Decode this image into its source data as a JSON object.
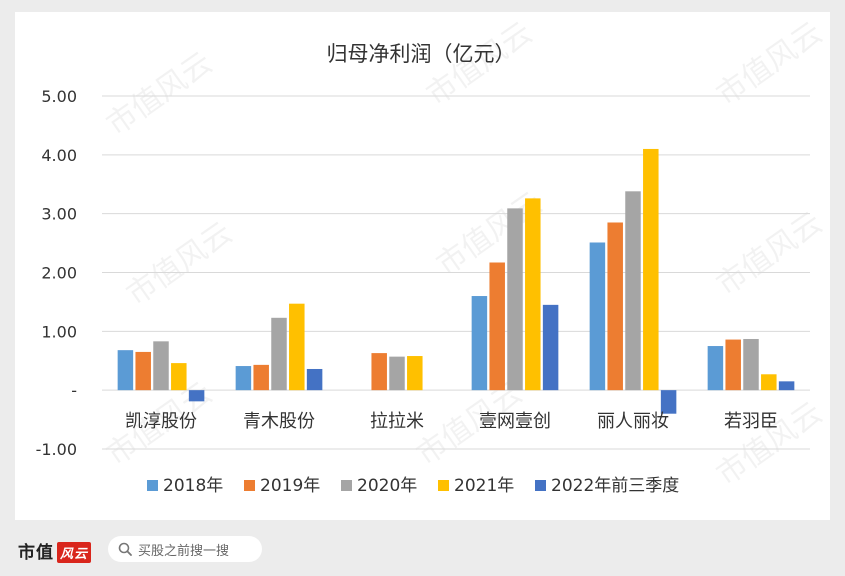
{
  "chart_data": {
    "type": "bar",
    "title": "归母净利润（亿元）",
    "categories": [
      "凯淳股份",
      "青木股份",
      "拉拉米",
      "壹网壹创",
      "丽人丽妆",
      "若羽臣"
    ],
    "series": [
      {
        "name": "2018年",
        "color": "#5b9bd5",
        "values": [
          0.68,
          0.41,
          null,
          1.6,
          2.51,
          0.75
        ]
      },
      {
        "name": "2019年",
        "color": "#ed7d31",
        "values": [
          0.65,
          0.43,
          0.63,
          2.17,
          2.85,
          0.86
        ]
      },
      {
        "name": "2020年",
        "color": "#a5a5a5",
        "values": [
          0.83,
          1.23,
          0.57,
          3.09,
          3.38,
          0.87
        ]
      },
      {
        "name": "2021年",
        "color": "#ffc000",
        "values": [
          0.46,
          1.47,
          0.58,
          3.26,
          4.1,
          0.27
        ]
      },
      {
        "name": "2022年前三季度",
        "color": "#4472c4",
        "values": [
          -0.19,
          0.36,
          null,
          1.45,
          -0.4,
          0.15
        ]
      }
    ],
    "ylim": [
      -1,
      5
    ],
    "yticks": [
      -1,
      0,
      1,
      2,
      3,
      4,
      5
    ],
    "ytick_labels": [
      "-1.00",
      "-",
      "1.00",
      "2.00",
      "3.00",
      "4.00",
      "5.00"
    ],
    "grid": true,
    "legend": "bottom"
  },
  "watermark": "市值风云",
  "footer": {
    "brand_prefix": "市值",
    "brand_box": "风云",
    "search_text": "买股之前搜一搜"
  }
}
